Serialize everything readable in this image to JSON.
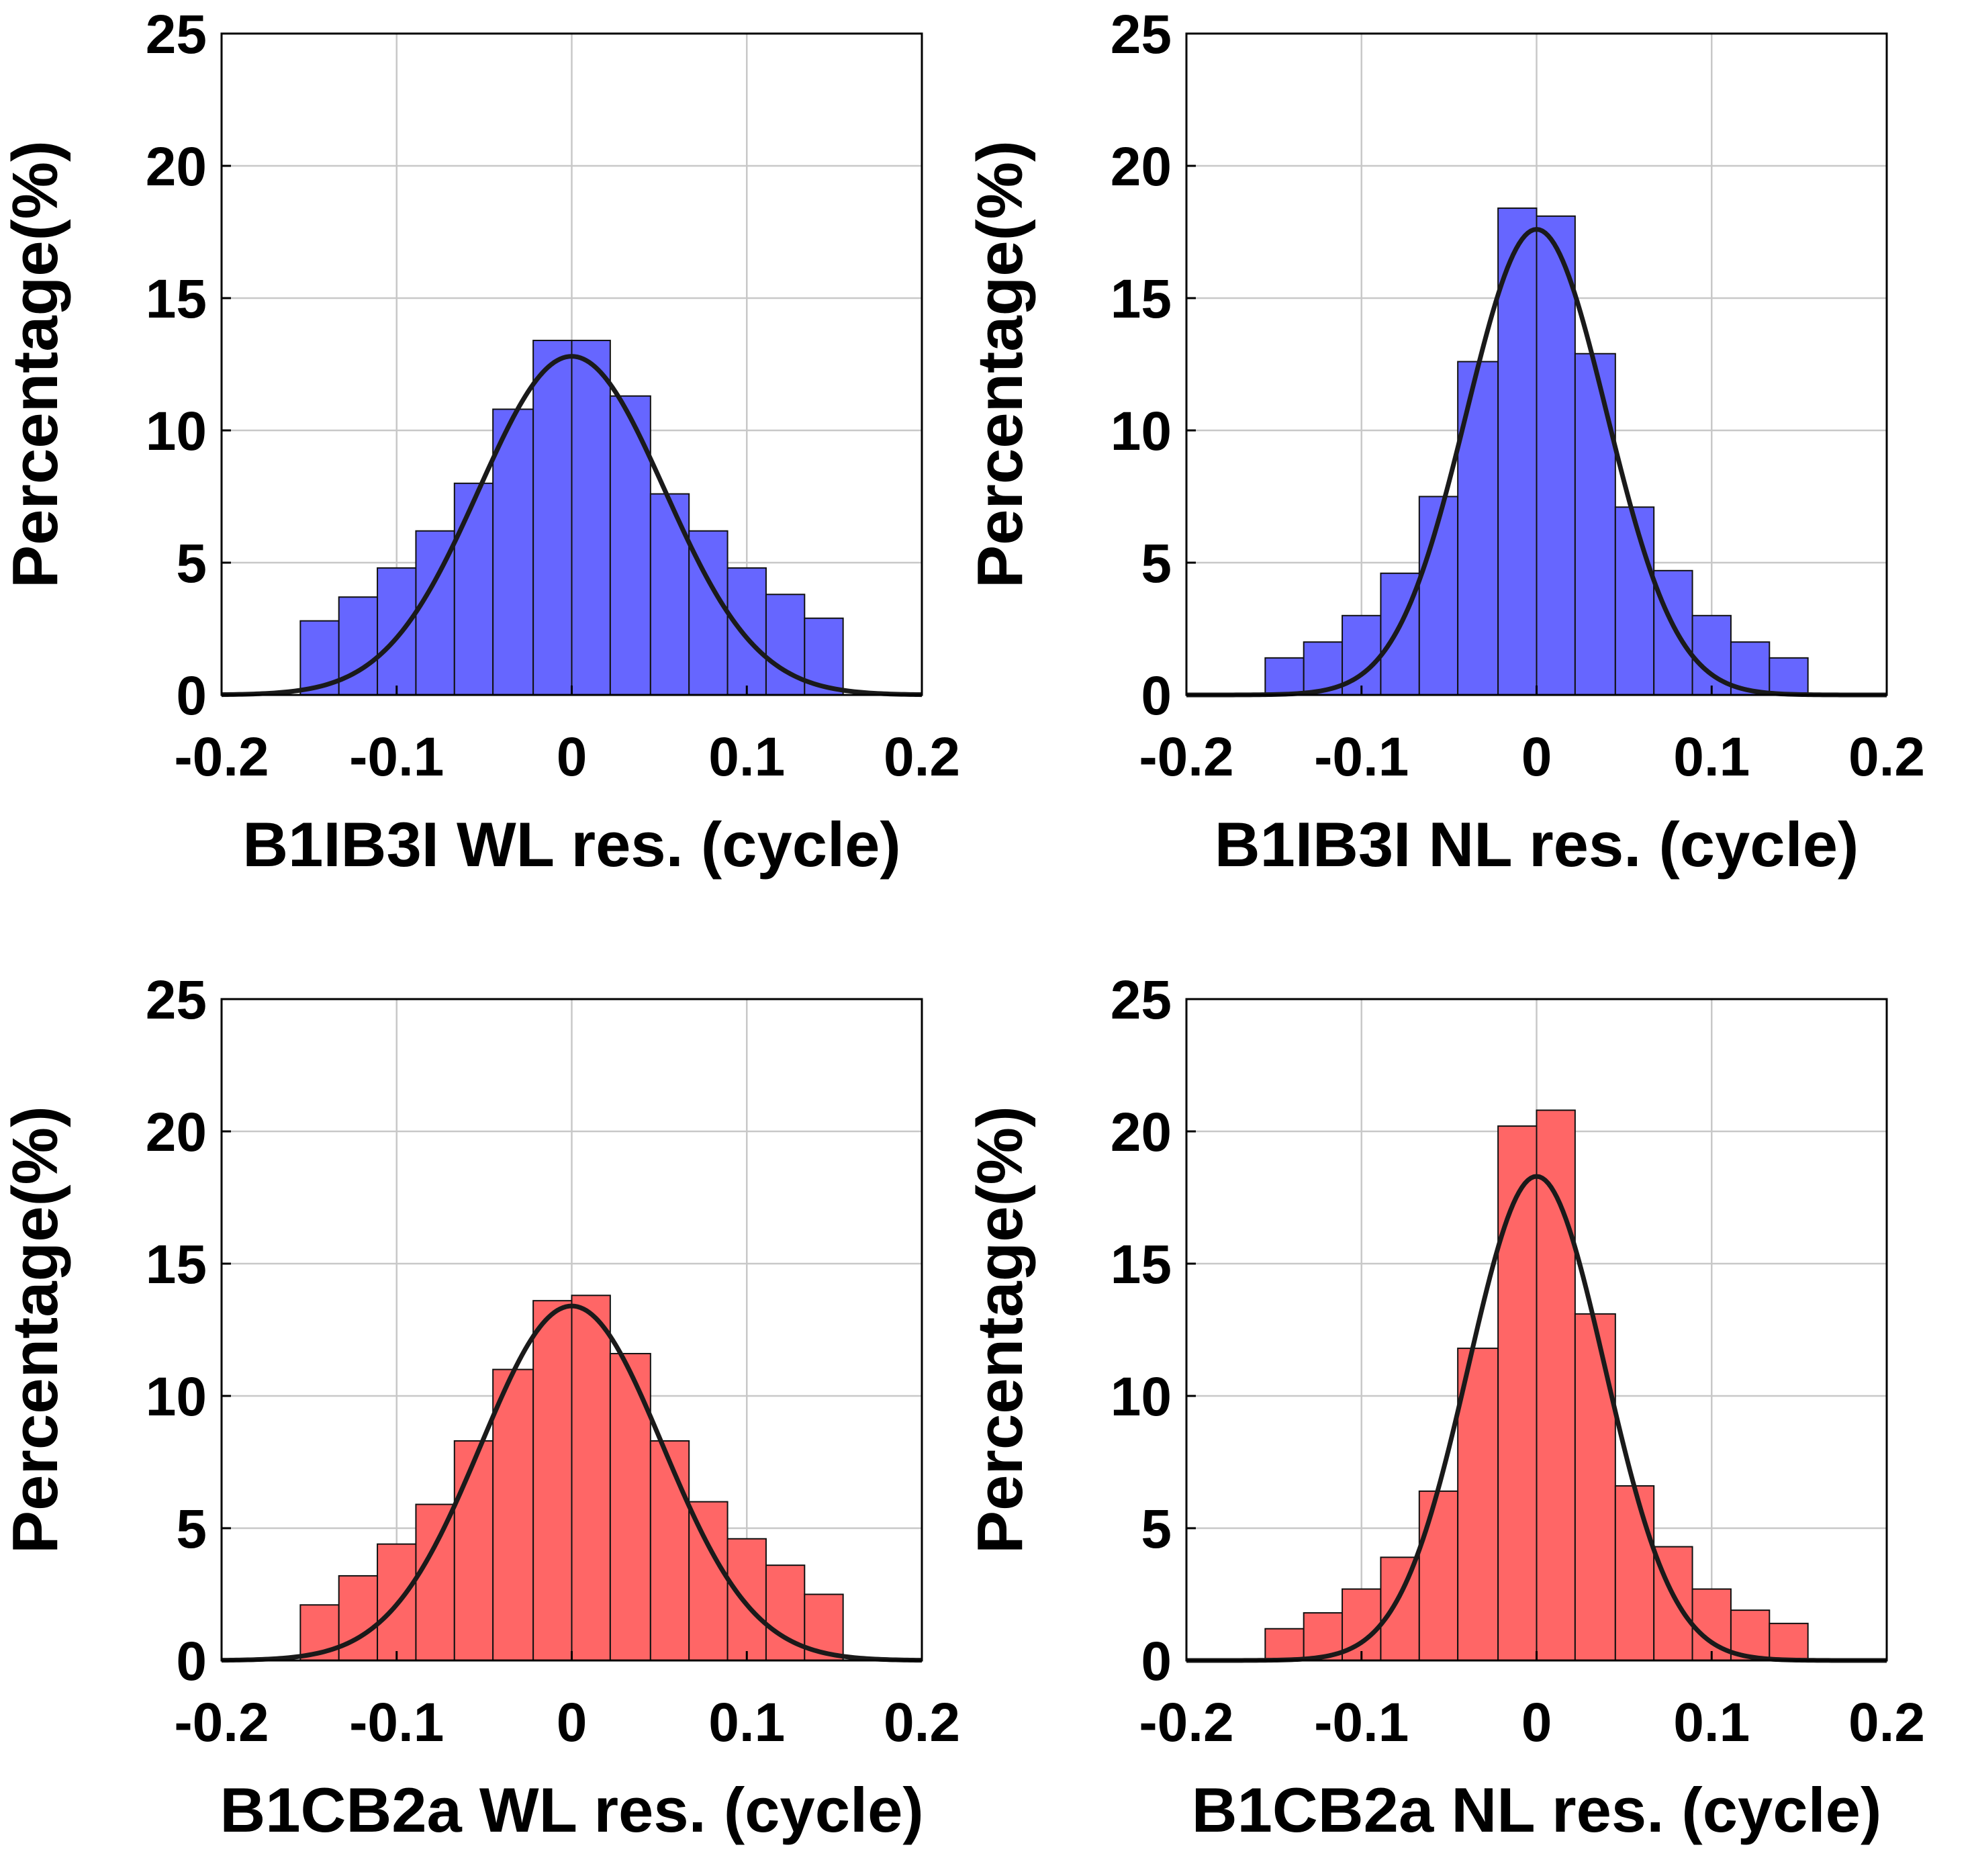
{
  "figure": {
    "bar_colors": {
      "blue": "#6666ff",
      "red": "#ff6666"
    },
    "fit_color": "#1a1a1a"
  },
  "chart_data": [
    {
      "type": "bar",
      "title": "",
      "xlabel": "B1IB3I WL res. (cycle)",
      "ylabel": "Percentage(%)",
      "xlim": [
        -0.2,
        0.2
      ],
      "ylim": [
        0,
        25
      ],
      "xticks": [
        -0.2,
        -0.1,
        0,
        0.1,
        0.2
      ],
      "xtick_labels": [
        "-0.2",
        "-0.1",
        "0",
        "0.1",
        "0.2"
      ],
      "yticks": [
        0,
        5,
        10,
        15,
        20,
        25
      ],
      "ytick_labels": [
        "0",
        "5",
        "10",
        "15",
        "20",
        "25"
      ],
      "grid": true,
      "color": "#6666ff",
      "bin_edges": [
        -0.155,
        -0.133,
        -0.111,
        -0.089,
        -0.067,
        -0.045,
        -0.022,
        0.0,
        0.022,
        0.045,
        0.067,
        0.089,
        0.111,
        0.133,
        0.155
      ],
      "values": [
        2.8,
        3.7,
        4.8,
        6.2,
        8.0,
        10.8,
        13.4,
        13.4,
        11.3,
        7.6,
        6.2,
        4.8,
        3.8,
        2.9
      ],
      "fit": {
        "type": "gaussian",
        "mean": 0.0,
        "sigma": 0.053,
        "peak": 12.8
      }
    },
    {
      "type": "bar",
      "title": "",
      "xlabel": "B1IB3I NL res. (cycle)",
      "ylabel": "Percentage(%)",
      "xlim": [
        -0.2,
        0.2
      ],
      "ylim": [
        0,
        25
      ],
      "xticks": [
        -0.2,
        -0.1,
        0,
        0.1,
        0.2
      ],
      "xtick_labels": [
        "-0.2",
        "-0.1",
        "0",
        "0.1",
        "0.2"
      ],
      "yticks": [
        0,
        5,
        10,
        15,
        20,
        25
      ],
      "ytick_labels": [
        "0",
        "5",
        "10",
        "15",
        "20",
        "25"
      ],
      "grid": true,
      "color": "#6666ff",
      "bin_edges": [
        -0.155,
        -0.133,
        -0.111,
        -0.089,
        -0.067,
        -0.045,
        -0.022,
        0.0,
        0.022,
        0.045,
        0.067,
        0.089,
        0.111,
        0.133,
        0.155
      ],
      "values": [
        1.4,
        2.0,
        3.0,
        4.6,
        7.5,
        12.6,
        18.4,
        18.1,
        12.9,
        7.1,
        4.7,
        3.0,
        2.0,
        1.4
      ],
      "fit": {
        "type": "gaussian",
        "mean": 0.0,
        "sigma": 0.04,
        "peak": 17.6
      }
    },
    {
      "type": "bar",
      "title": "",
      "xlabel": "B1CB2a WL res. (cycle)",
      "ylabel": "Percentage(%)",
      "xlim": [
        -0.2,
        0.2
      ],
      "ylim": [
        0,
        25
      ],
      "xticks": [
        -0.2,
        -0.1,
        0,
        0.1,
        0.2
      ],
      "xtick_labels": [
        "-0.2",
        "-0.1",
        "0",
        "0.1",
        "0.2"
      ],
      "yticks": [
        0,
        5,
        10,
        15,
        20,
        25
      ],
      "ytick_labels": [
        "0",
        "5",
        "10",
        "15",
        "20",
        "25"
      ],
      "grid": true,
      "color": "#ff6666",
      "bin_edges": [
        -0.155,
        -0.133,
        -0.111,
        -0.089,
        -0.067,
        -0.045,
        -0.022,
        0.0,
        0.022,
        0.045,
        0.067,
        0.089,
        0.111,
        0.133,
        0.155
      ],
      "values": [
        2.1,
        3.2,
        4.4,
        5.9,
        8.3,
        11.0,
        13.6,
        13.8,
        11.6,
        8.3,
        6.0,
        4.6,
        3.6,
        2.5
      ],
      "fit": {
        "type": "gaussian",
        "mean": 0.0,
        "sigma": 0.052,
        "peak": 13.4
      }
    },
    {
      "type": "bar",
      "title": "",
      "xlabel": "B1CB2a NL res. (cycle)",
      "ylabel": "Percentage(%)",
      "xlim": [
        -0.2,
        0.2
      ],
      "ylim": [
        0,
        25
      ],
      "xticks": [
        -0.2,
        -0.1,
        0,
        0.1,
        0.2
      ],
      "xtick_labels": [
        "-0.2",
        "-0.1",
        "0",
        "0.1",
        "0.2"
      ],
      "yticks": [
        0,
        5,
        10,
        15,
        20,
        25
      ],
      "ytick_labels": [
        "0",
        "5",
        "10",
        "15",
        "20",
        "25"
      ],
      "grid": true,
      "color": "#ff6666",
      "bin_edges": [
        -0.155,
        -0.133,
        -0.111,
        -0.089,
        -0.067,
        -0.045,
        -0.022,
        0.0,
        0.022,
        0.045,
        0.067,
        0.089,
        0.111,
        0.133,
        0.155
      ],
      "values": [
        1.2,
        1.8,
        2.7,
        3.9,
        6.4,
        11.8,
        20.2,
        20.8,
        13.1,
        6.6,
        4.3,
        2.7,
        1.9,
        1.4
      ],
      "fit": {
        "type": "gaussian",
        "mean": 0.0,
        "sigma": 0.039,
        "peak": 18.3
      }
    }
  ]
}
